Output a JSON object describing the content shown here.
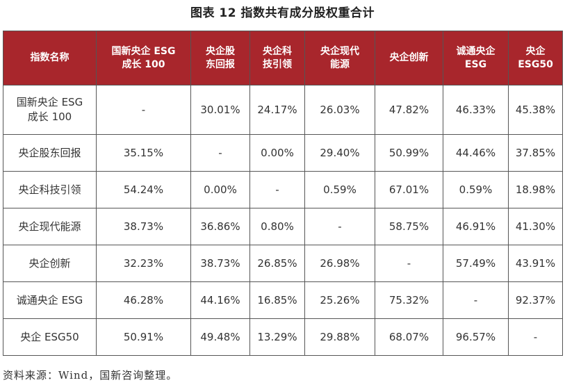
{
  "title": "图表 12  指数共有成分股权重合计",
  "table": {
    "headers": [
      "指数名称",
      "国新央企 ESG\n成长 100",
      "央企股\n东回报",
      "央企科\n技引领",
      "央企现代\n能源",
      "央企创新",
      "诚通央企\nESG",
      "央企\nESG50"
    ],
    "rows": [
      {
        "name": "国新央企 ESG\n成长 100",
        "values": [
          "-",
          "30.01%",
          "24.17%",
          "26.03%",
          "47.82%",
          "46.33%",
          "45.38%"
        ]
      },
      {
        "name": "央企股东回报",
        "values": [
          "35.15%",
          "-",
          "0.00%",
          "29.40%",
          "50.99%",
          "44.46%",
          "37.85%"
        ]
      },
      {
        "name": "央企科技引领",
        "values": [
          "54.24%",
          "0.00%",
          "-",
          "0.59%",
          "67.01%",
          "0.59%",
          "18.98%"
        ]
      },
      {
        "name": "央企现代能源",
        "values": [
          "38.73%",
          "36.86%",
          "0.80%",
          "-",
          "58.75%",
          "46.91%",
          "41.30%"
        ]
      },
      {
        "name": "央企创新",
        "values": [
          "32.23%",
          "38.73%",
          "26.85%",
          "26.98%",
          "-",
          "57.49%",
          "43.91%"
        ]
      },
      {
        "name": "诚通央企 ESG",
        "values": [
          "46.28%",
          "44.16%",
          "16.85%",
          "25.26%",
          "75.32%",
          "-",
          "92.37%"
        ]
      },
      {
        "name": "央企 ESG50",
        "values": [
          "50.91%",
          "49.48%",
          "13.29%",
          "29.88%",
          "68.07%",
          "96.57%",
          "-"
        ]
      }
    ]
  },
  "source": "资料来源：Wind，国新咨询整理。",
  "colors": {
    "header_bg": "#a8262c",
    "header_text": "#ffffff",
    "border": "#555555"
  }
}
